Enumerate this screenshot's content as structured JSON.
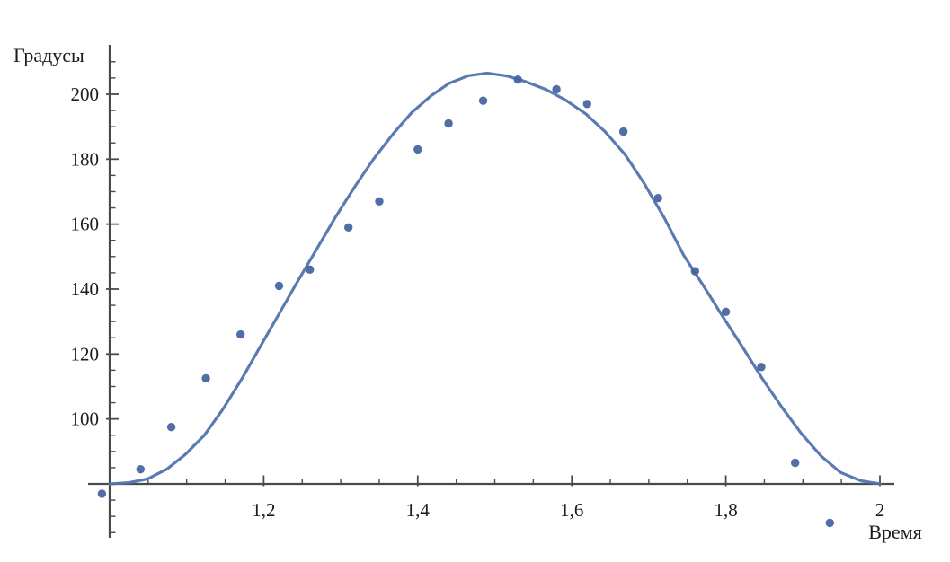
{
  "figure": {
    "background": "#ffffff",
    "description": "Scatter plot of measured degrees versus time with fitted sinusoidal curve"
  },
  "chart_data": {
    "type": "scatter",
    "title": "",
    "xlabel": "Время",
    "ylabel": "Градусы",
    "grid": false,
    "legend": null,
    "xlim": [
      0.97,
      2.03
    ],
    "ylim": [
      63,
      215
    ],
    "axes_cross": {
      "x": 1.0,
      "y": 80
    },
    "x_ticks": [
      1.2,
      1.4,
      1.6,
      1.8,
      2.0
    ],
    "x_tick_labels": [
      "1,2",
      "1,4",
      "1,6",
      "1,8",
      "2"
    ],
    "x_minor_tick_step": 0.05,
    "x_minor_tick_range": [
      1.05,
      1.95
    ],
    "y_ticks": [
      100,
      120,
      140,
      160,
      180,
      200
    ],
    "y_tick_labels": [
      "100",
      "120",
      "140",
      "160",
      "180",
      "200"
    ],
    "y_minor_tick_step": 5,
    "y_minor_tick_range": [
      65,
      210
    ],
    "style": {
      "axis_color": "#4a4a4a",
      "text_color": "#1c1c1c",
      "point_color": "#44639f",
      "curve_color": "#4f74ae"
    },
    "series": [
      {
        "name": "fitted-curve",
        "type": "line",
        "color": "#4f74ae",
        "stroke_width": 3.2,
        "peak": [
          1.49,
          206.5
        ],
        "points": [
          [
            1.0,
            80.0
          ],
          [
            1.025,
            80.4
          ],
          [
            1.049,
            81.5
          ],
          [
            1.074,
            84.5
          ],
          [
            1.098,
            89.0
          ],
          [
            1.123,
            95.0
          ],
          [
            1.147,
            103.0
          ],
          [
            1.172,
            112.5
          ],
          [
            1.196,
            122.5
          ],
          [
            1.221,
            132.8
          ],
          [
            1.245,
            142.8
          ],
          [
            1.27,
            152.8
          ],
          [
            1.294,
            162.5
          ],
          [
            1.319,
            171.8
          ],
          [
            1.343,
            180.2
          ],
          [
            1.368,
            187.8
          ],
          [
            1.392,
            194.3
          ],
          [
            1.417,
            199.5
          ],
          [
            1.441,
            203.4
          ],
          [
            1.466,
            205.7
          ],
          [
            1.49,
            206.5
          ],
          [
            1.516,
            205.6
          ],
          [
            1.541,
            203.8
          ],
          [
            1.567,
            201.4
          ],
          [
            1.592,
            198.2
          ],
          [
            1.618,
            194.0
          ],
          [
            1.643,
            188.5
          ],
          [
            1.669,
            181.5
          ],
          [
            1.694,
            172.5
          ],
          [
            1.72,
            162.0
          ],
          [
            1.745,
            150.5
          ],
          [
            1.771,
            141.0
          ],
          [
            1.796,
            131.5
          ],
          [
            1.822,
            122.0
          ],
          [
            1.847,
            112.5
          ],
          [
            1.873,
            103.5
          ],
          [
            1.898,
            95.5
          ],
          [
            1.924,
            88.5
          ],
          [
            1.949,
            83.5
          ],
          [
            1.975,
            81.0
          ],
          [
            2.0,
            80.0
          ]
        ]
      },
      {
        "name": "measured-points",
        "type": "scatter",
        "color": "#44639f",
        "marker_radius": 4.7,
        "points": [
          [
            0.99,
            77
          ],
          [
            1.04,
            84.5
          ],
          [
            1.08,
            97.5
          ],
          [
            1.125,
            112.5
          ],
          [
            1.17,
            126
          ],
          [
            1.22,
            141
          ],
          [
            1.26,
            146
          ],
          [
            1.31,
            159
          ],
          [
            1.35,
            167
          ],
          [
            1.4,
            183
          ],
          [
            1.44,
            191
          ],
          [
            1.485,
            198
          ],
          [
            1.53,
            204.5
          ],
          [
            1.58,
            201.5
          ],
          [
            1.62,
            197
          ],
          [
            1.667,
            188.5
          ],
          [
            1.712,
            168
          ],
          [
            1.76,
            145.5
          ],
          [
            1.8,
            133
          ],
          [
            1.846,
            116
          ],
          [
            1.89,
            86.5
          ],
          [
            1.935,
            68
          ]
        ]
      }
    ]
  }
}
